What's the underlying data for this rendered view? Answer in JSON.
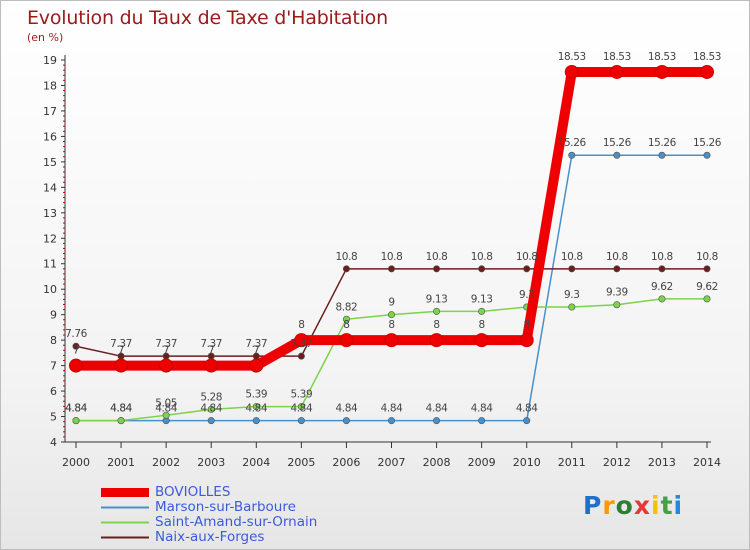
{
  "title": "Evolution du Taux de Taxe d'Habitation",
  "unit": "(en %)",
  "logo": {
    "letters": [
      "P",
      "r",
      "o",
      "x",
      "i",
      "t",
      "i"
    ],
    "colors": [
      "#1f6fd1",
      "#ff9800",
      "#2e7d32",
      "#e53935",
      "#f9c000",
      "#43a047",
      "#1e88e5"
    ]
  },
  "chart_data": {
    "type": "line",
    "x": [
      2000,
      2001,
      2002,
      2003,
      2004,
      2005,
      2006,
      2007,
      2008,
      2009,
      2010,
      2011,
      2012,
      2013,
      2014
    ],
    "x_tick_labels": [
      "2000",
      "2001",
      "2002",
      "2003",
      "2004",
      "2005",
      "2006",
      "2007",
      "2008",
      "2009",
      "2010",
      "2011",
      "2012",
      "2013",
      "2014"
    ],
    "y_tick_labels": [
      "4",
      "5",
      "6",
      "7",
      "8",
      "9",
      "10",
      "11",
      "12",
      "13",
      "14",
      "15",
      "16",
      "17",
      "18",
      "19"
    ],
    "ylim": [
      4,
      19
    ],
    "grid": false,
    "legend_position": "bottom-left",
    "series": [
      {
        "name": "BOVIOLLES",
        "color": "#ee0000",
        "width": "thick",
        "values": [
          7,
          7,
          7,
          7,
          7,
          8,
          8,
          8,
          8,
          8,
          8,
          18.53,
          18.53,
          18.53,
          18.53
        ],
        "labels": [
          "7",
          "7",
          "7",
          "7",
          "7",
          "8",
          "8",
          "8",
          "8",
          "8",
          "8",
          "18.53",
          "18.53",
          "18.53",
          "18.53"
        ]
      },
      {
        "name": "Marson-sur-Barboure",
        "color": "#4a90c8",
        "width": "thin",
        "values": [
          4.84,
          4.84,
          4.84,
          4.84,
          4.84,
          4.84,
          4.84,
          4.84,
          4.84,
          4.84,
          4.84,
          15.26,
          15.26,
          15.26,
          15.26
        ],
        "labels": [
          "4.84",
          "4.84",
          "4.84",
          "4.84",
          "4.84",
          "4.84",
          "4.84",
          "4.84",
          "4.84",
          "4.84",
          "4.84",
          "15.26",
          "15.26",
          "15.26",
          "15.26"
        ]
      },
      {
        "name": "Saint-Amand-sur-Ornain",
        "color": "#7bd44a",
        "width": "thin",
        "values": [
          4.84,
          4.84,
          5.05,
          5.28,
          5.39,
          5.39,
          8.82,
          9,
          9.13,
          9.13,
          9.3,
          9.3,
          9.39,
          9.62,
          9.62
        ],
        "labels": [
          "4.84",
          "4.84",
          "5.05",
          "5.28",
          "5.39",
          "5.39",
          "8.82",
          "9",
          "9.13",
          "9.13",
          "9.3",
          "9.3",
          "9.39",
          "9.62",
          "9.62"
        ]
      },
      {
        "name": "Naix-aux-Forges",
        "color": "#6b1e1e",
        "width": "thin",
        "values": [
          7.76,
          7.37,
          7.37,
          7.37,
          7.37,
          7.37,
          10.8,
          10.8,
          10.8,
          10.8,
          10.8,
          10.8,
          10.8,
          10.8,
          10.8
        ],
        "labels": [
          "7.76",
          "7.37",
          "7.37",
          "7.37",
          "7.37",
          "7.37",
          "10.8",
          "10.8",
          "10.8",
          "10.8",
          "10.8",
          "10.8",
          "10.8",
          "10.8",
          "10.8"
        ]
      }
    ]
  }
}
